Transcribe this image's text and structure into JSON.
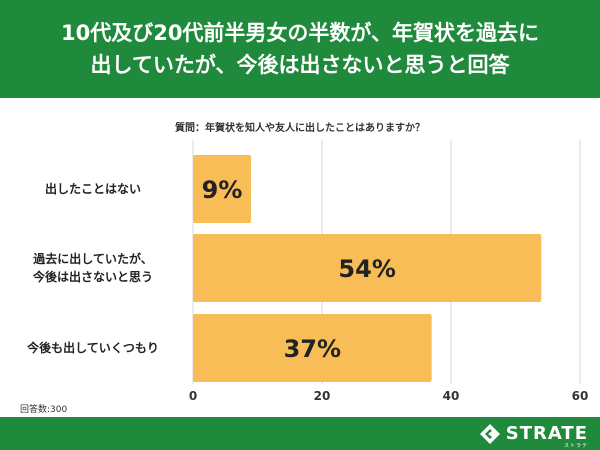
{
  "header": {
    "line1": "10代及び20代前半男女の半数が、年賀状を過去に",
    "line2": "出していたが、今後は出さないと思うと回答"
  },
  "question": "質問：年賀状を知人や友人に出したことはありますか？",
  "respondents": "回答数:300",
  "brand": {
    "name": "STRATE",
    "sub": "ストラテ"
  },
  "colors": {
    "header": "#1f8a3c",
    "bar": "#f8bd56",
    "grid": "#d9d9d9"
  },
  "chart_data": {
    "type": "bar",
    "orientation": "horizontal",
    "categories": [
      [
        "出したことはない"
      ],
      [
        "過去に出していたが、",
        "今後は出さないと思う"
      ],
      [
        "今後も出していくつもり"
      ]
    ],
    "values": [
      9,
      54,
      37
    ],
    "data_labels": [
      "9%",
      "54%",
      "37%"
    ],
    "xlim": [
      0,
      60
    ],
    "xticks": [
      0,
      20,
      40,
      60
    ],
    "grid": true
  }
}
